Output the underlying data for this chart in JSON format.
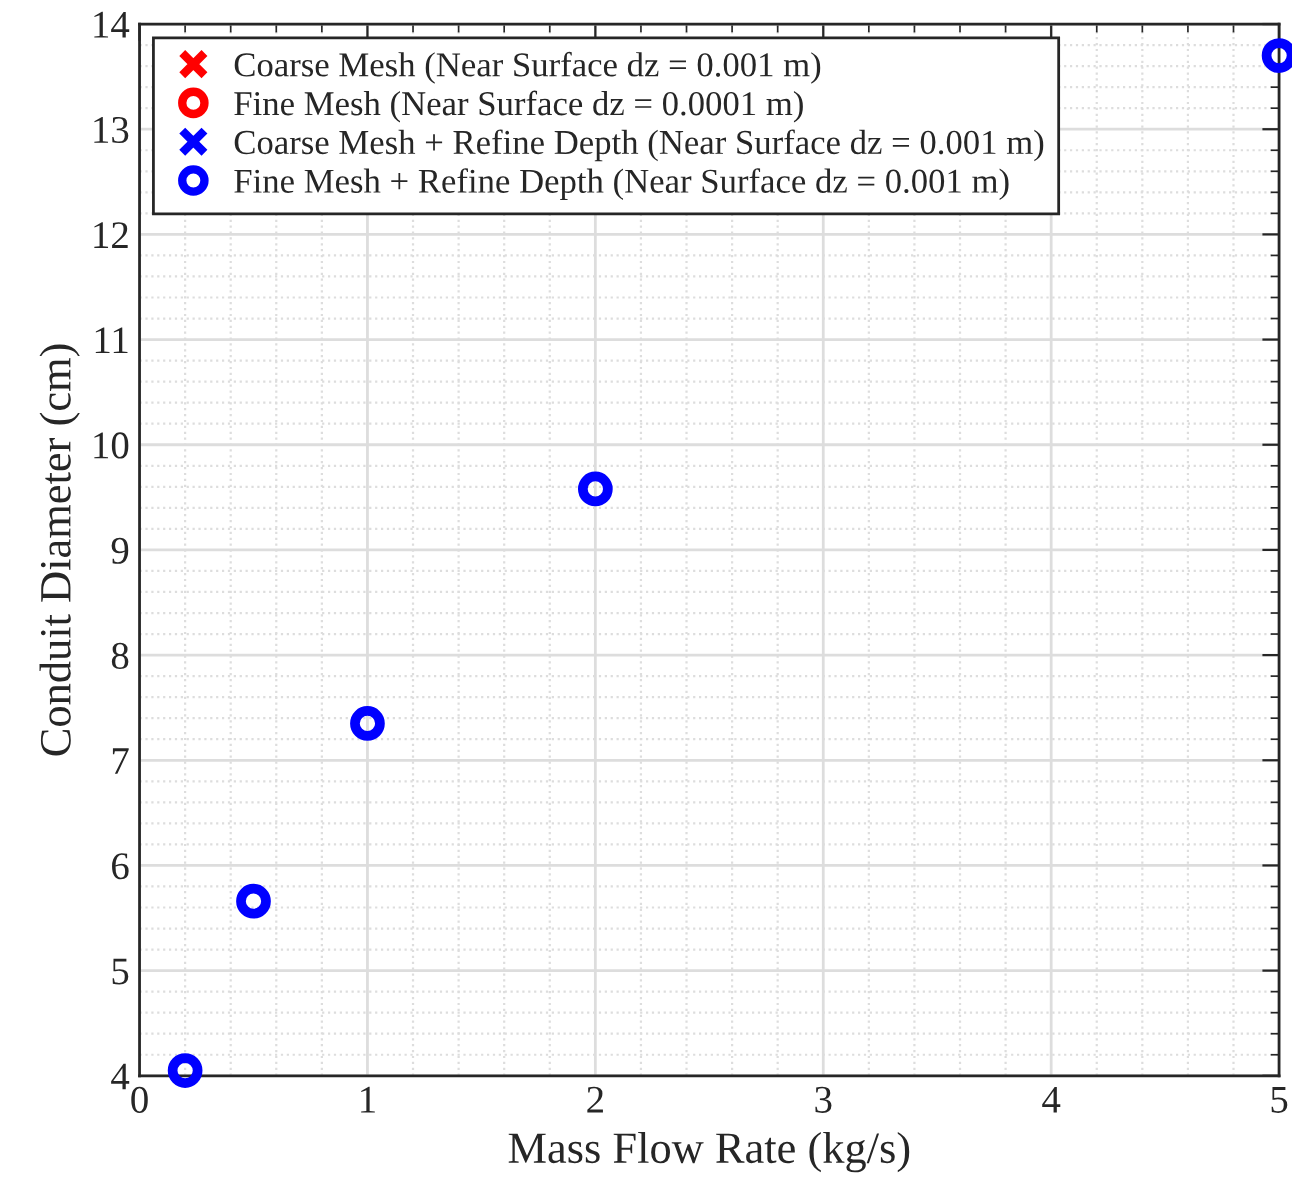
{
  "chart_data": {
    "type": "scatter",
    "xlabel": "Mass Flow Rate (kg/s)",
    "ylabel": "Conduit Diameter (cm)",
    "x": [
      0.2,
      0.5,
      1,
      2,
      5
    ],
    "series": [
      {
        "name": "Coarse Mesh (Near Surface dz = 0.001 m)",
        "color": "#ff0000",
        "marker": "cross",
        "values": [
          null,
          null,
          null,
          null,
          null
        ]
      },
      {
        "name": "Fine Mesh (Near Surface dz = 0.0001 m)",
        "color": "#ff0000",
        "marker": "circle",
        "values": [
          null,
          null,
          null,
          null,
          null
        ]
      },
      {
        "name": "Coarse Mesh + Refine Depth (Near Surface dz = 0.001 m)",
        "color": "#0000ff",
        "marker": "cross",
        "values": [
          null,
          null,
          null,
          null,
          null
        ]
      },
      {
        "name": "Fine Mesh + Refine Depth (Near Surface dz = 0.001 m)",
        "color": "#0000ff",
        "marker": "circle",
        "values": [
          4.05,
          5.66,
          7.35,
          9.58,
          13.7
        ]
      }
    ],
    "xlim": [
      0,
      5
    ],
    "xticks": [
      0,
      1,
      2,
      3,
      4,
      5
    ],
    "ylim": [
      4,
      14
    ],
    "yticks": [
      4,
      5,
      6,
      7,
      8,
      9,
      10,
      11,
      12,
      13,
      14
    ],
    "grid": true,
    "legend": "top left"
  }
}
